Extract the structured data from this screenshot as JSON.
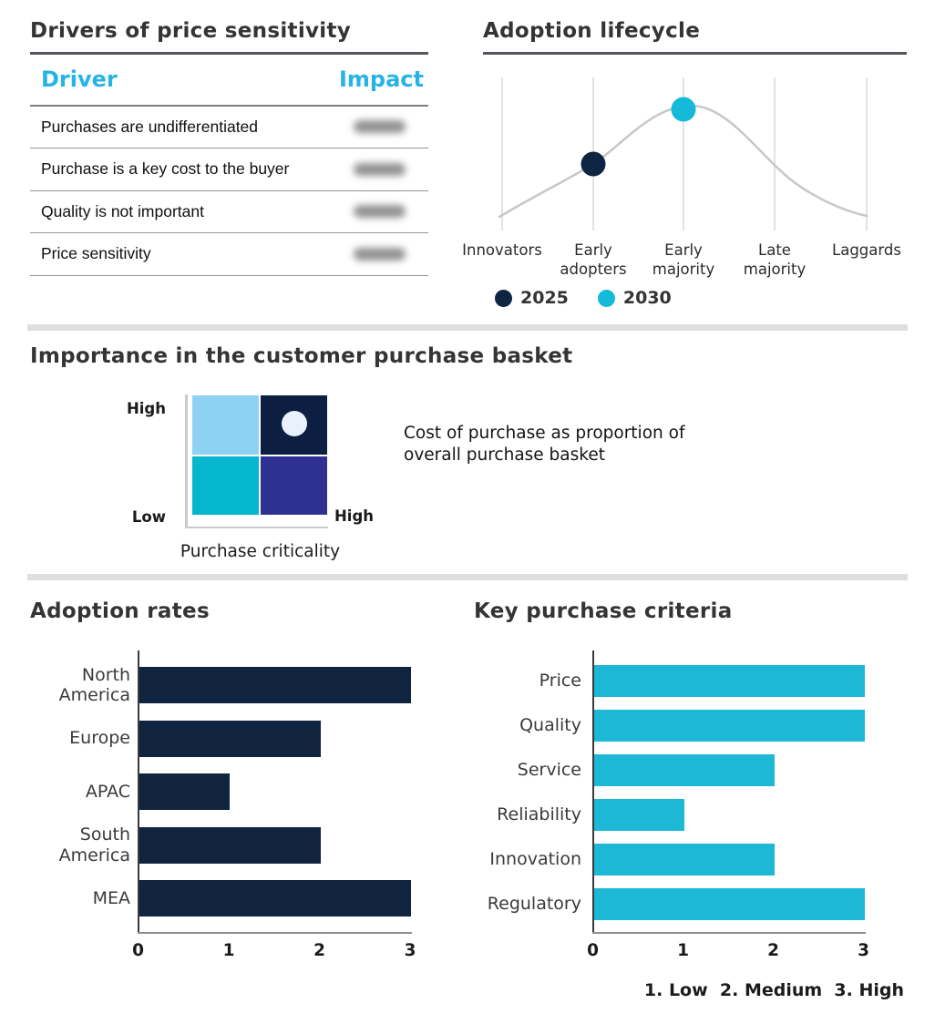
{
  "drivers_table": {
    "title": "Drivers of price sensitivity",
    "columns": [
      "Driver",
      "Impact"
    ],
    "rows": [
      "Purchases are undifferentiated",
      "Purchase is a key cost to the buyer",
      "Quality is not important",
      "Price sensitivity"
    ],
    "impact_values_redacted": true,
    "accent_color": "#26b4e6"
  },
  "chart_data": [
    {
      "id": "adoption_lifecycle",
      "type": "line",
      "title": "Adoption lifecycle",
      "description": "Bell-shaped adoption lifecycle curve with year markers",
      "categories": [
        "Innovators",
        "Early\nadopters",
        "Early\nmajority",
        "Late\nmajority",
        "Laggards"
      ],
      "curve_color": "#c7c7c7",
      "series": [
        {
          "name": "2025",
          "color": "#0e2443",
          "category": "Early adopters",
          "category_index": 1
        },
        {
          "name": "2030",
          "color": "#15b9d9",
          "category": "Early majority",
          "category_index": 2
        }
      ],
      "legend_position": "bottom",
      "grid": true
    },
    {
      "id": "purchase_basket_matrix",
      "type": "heatmap",
      "title": "Importance in the customer purchase basket",
      "y_axis": {
        "top": "High",
        "bottom": "Low"
      },
      "x_axis": {
        "right": "High",
        "label": "Purchase criticality"
      },
      "cells": [
        {
          "row": 0,
          "col": 0,
          "color": "#8dd2f3",
          "marker": false
        },
        {
          "row": 0,
          "col": 1,
          "color": "#0c1f42",
          "marker": true
        },
        {
          "row": 1,
          "col": 0,
          "color": "#04b7ce",
          "marker": false
        },
        {
          "row": 1,
          "col": 1,
          "color": "#2e3192",
          "marker": false
        }
      ],
      "marker_color": "#e9f2fc",
      "note_lines": [
        "Cost of purchase as proportion of",
        "overall purchase basket"
      ]
    },
    {
      "id": "adoption_rates",
      "type": "bar",
      "orientation": "horizontal",
      "title": "Adoption rates",
      "categories": [
        "North\nAmerica",
        "Europe",
        "APAC",
        "South\nAmerica",
        "MEA"
      ],
      "values": [
        3,
        2,
        1,
        2,
        3
      ],
      "xlim": [
        0,
        3
      ],
      "ticks": [
        0,
        1,
        2,
        3
      ],
      "bar_color": "#102440"
    },
    {
      "id": "key_purchase_criteria",
      "type": "bar",
      "orientation": "horizontal",
      "title": "Key purchase criteria",
      "categories": [
        "Price",
        "Quality",
        "Service",
        "Reliability",
        "Innovation",
        "Regulatory"
      ],
      "values": [
        3,
        3,
        2,
        1,
        2,
        3
      ],
      "xlim": [
        0,
        3
      ],
      "ticks": [
        0,
        1,
        2,
        3
      ],
      "bar_color": "#1cb8d6",
      "footnote": "1. Low  2. Medium  3. High"
    }
  ]
}
